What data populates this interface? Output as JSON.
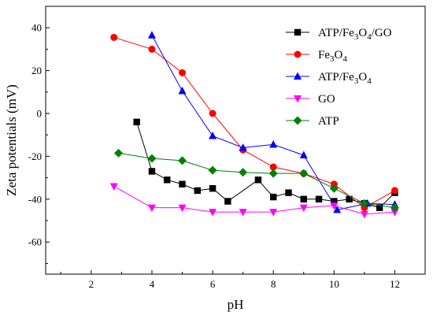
{
  "chart_data": {
    "type": "line",
    "xlabel": "pH",
    "ylabel": "Zeta potentials (mV)",
    "xlim": [
      0.5,
      13
    ],
    "ylim": [
      -75,
      50
    ],
    "x_ticks": [
      2,
      4,
      6,
      8,
      10,
      12
    ],
    "y_ticks": [
      -60,
      -40,
      -20,
      0,
      20,
      40
    ],
    "grid": false,
    "legend_position": "top-right",
    "series": [
      {
        "name": "ATP/Fe3O4/GO",
        "legend": [
          "ATP/Fe",
          "3",
          "O",
          "4",
          "/GO"
        ],
        "color": "#000000",
        "marker": "square",
        "x": [
          3.5,
          4.0,
          4.5,
          5.0,
          5.5,
          6.0,
          6.5,
          7.5,
          8.0,
          8.5,
          9.0,
          9.5,
          10.0,
          10.5,
          11.0,
          11.5,
          12.0
        ],
        "y": [
          -4,
          -27,
          -31,
          -33,
          -36,
          -35,
          -41,
          -31,
          -39,
          -37,
          -40,
          -40,
          -41,
          -40,
          -42,
          -44,
          -37
        ]
      },
      {
        "name": "Fe3O4",
        "legend": [
          "Fe",
          "3",
          "O",
          "4",
          ""
        ],
        "color": "#ff0000",
        "marker": "circle",
        "x": [
          2.75,
          4.0,
          5.0,
          6.0,
          7.0,
          8.0,
          9.0,
          10.0,
          11.0,
          12.0
        ],
        "y": [
          35.5,
          30,
          19,
          0,
          -17,
          -25,
          -28,
          -33,
          -44,
          -36
        ]
      },
      {
        "name": "ATP/Fe3O4",
        "legend": [
          "ATP/Fe",
          "3",
          "O",
          "4",
          ""
        ],
        "color": "#0000ff",
        "marker": "triangle-up",
        "x": [
          4.0,
          5.0,
          6.0,
          7.0,
          8.0,
          9.0,
          10.1,
          11.1,
          12.0
        ],
        "y": [
          36.5,
          10.5,
          -10.5,
          -16,
          -14.5,
          -19.5,
          -45,
          -42,
          -42.5
        ]
      },
      {
        "name": "GO",
        "legend": [
          "GO",
          "",
          "",
          "",
          ""
        ],
        "color": "#ff00ff",
        "marker": "triangle-down",
        "x": [
          2.75,
          4.0,
          5.0,
          6.0,
          7.0,
          8.0,
          9.0,
          10.0,
          11.0,
          12.0
        ],
        "y": [
          -34,
          -44,
          -44,
          -46,
          -46,
          -46,
          -44,
          -43,
          -47,
          -46
        ]
      },
      {
        "name": "ATP",
        "legend": [
          "ATP",
          "",
          "",
          "",
          ""
        ],
        "color": "#008000",
        "marker": "diamond",
        "x": [
          2.9,
          4.0,
          5.0,
          6.0,
          7.0,
          8.0,
          9.0,
          10.0,
          11.0,
          12.0
        ],
        "y": [
          -18.5,
          -21,
          -22,
          -26.5,
          -27.5,
          -28,
          -28,
          -35,
          -42,
          -44
        ]
      }
    ]
  }
}
